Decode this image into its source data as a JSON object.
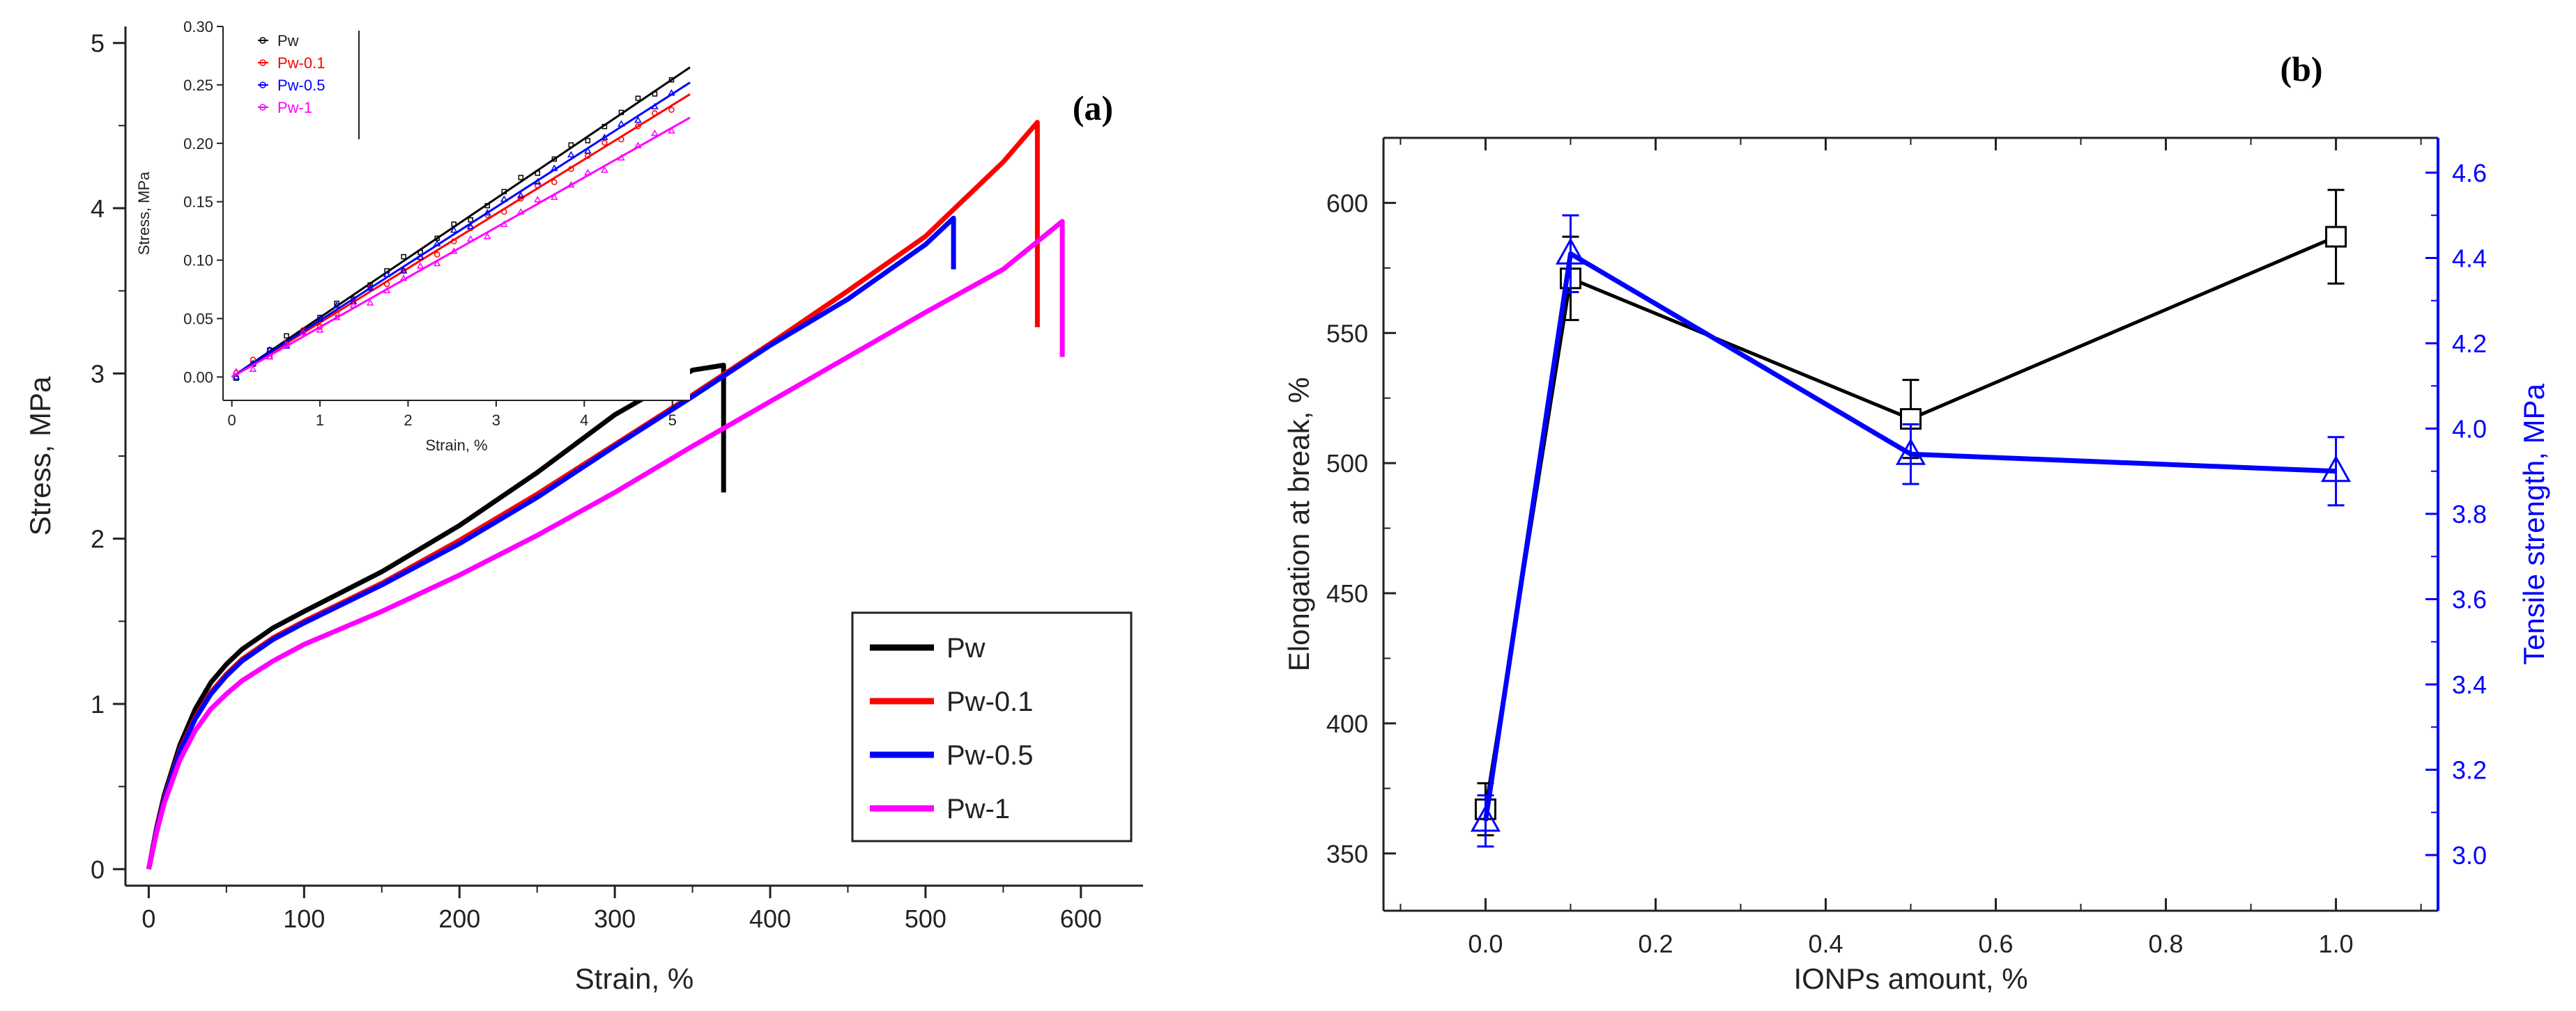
{
  "chart_data": [
    {
      "id": "a",
      "panel_label": "(a)",
      "type": "line",
      "title": "",
      "xlabel": "Strain, %",
      "ylabel": "Stress, MPa",
      "xlim": [
        -15,
        640
      ],
      "ylim": [
        -0.1,
        5.1
      ],
      "xticks": [
        0,
        100,
        200,
        300,
        400,
        500,
        600
      ],
      "yticks": [
        0,
        1,
        2,
        3,
        4,
        5
      ],
      "grid": false,
      "legend_position": "bottom-right",
      "series": [
        {
          "name": "Pw",
          "color": "#000000",
          "x": [
            0,
            5,
            10,
            20,
            30,
            40,
            50,
            60,
            80,
            100,
            150,
            200,
            250,
            300,
            350,
            370,
            370
          ],
          "y": [
            0,
            0.25,
            0.45,
            0.75,
            0.97,
            1.13,
            1.24,
            1.33,
            1.46,
            1.56,
            1.8,
            2.08,
            2.4,
            2.75,
            3.02,
            3.05,
            2.28
          ]
        },
        {
          "name": "Pw-0.1",
          "color": "#ff0000",
          "x": [
            0,
            5,
            10,
            20,
            30,
            40,
            50,
            60,
            80,
            100,
            150,
            200,
            250,
            300,
            350,
            400,
            450,
            500,
            550,
            572,
            572
          ],
          "y": [
            0,
            0.24,
            0.43,
            0.72,
            0.92,
            1.07,
            1.18,
            1.27,
            1.4,
            1.5,
            1.73,
            1.99,
            2.27,
            2.57,
            2.87,
            3.18,
            3.5,
            3.83,
            4.28,
            4.52,
            3.28
          ]
        },
        {
          "name": "Pw-0.5",
          "color": "#0000ff",
          "x": [
            0,
            5,
            10,
            20,
            30,
            40,
            50,
            60,
            80,
            100,
            150,
            200,
            250,
            300,
            350,
            400,
            450,
            500,
            518,
            518
          ],
          "y": [
            0,
            0.23,
            0.42,
            0.71,
            0.91,
            1.06,
            1.17,
            1.26,
            1.39,
            1.49,
            1.72,
            1.97,
            2.25,
            2.56,
            2.86,
            3.17,
            3.45,
            3.78,
            3.94,
            3.63
          ]
        },
        {
          "name": "Pw-1",
          "color": "#ff00ff",
          "x": [
            0,
            5,
            10,
            20,
            30,
            40,
            50,
            60,
            80,
            100,
            150,
            200,
            250,
            300,
            350,
            400,
            450,
            500,
            550,
            588,
            588
          ],
          "y": [
            0,
            0.22,
            0.4,
            0.66,
            0.84,
            0.97,
            1.06,
            1.14,
            1.26,
            1.36,
            1.56,
            1.78,
            2.02,
            2.28,
            2.56,
            2.83,
            3.1,
            3.37,
            3.63,
            3.92,
            3.1
          ]
        }
      ],
      "inset": {
        "type": "line",
        "xlabel": "Strain, %",
        "ylabel": "Stress, MPa",
        "xlim": [
          -0.1,
          5.2
        ],
        "ylim": [
          -0.02,
          0.3
        ],
        "xticks": [
          0,
          1,
          2,
          3,
          4,
          5
        ],
        "yticks": [
          0.0,
          0.05,
          0.1,
          0.15,
          0.2,
          0.25,
          0.3
        ],
        "ytick_labels": [
          "0.00",
          "0.05",
          "0.10",
          "0.15",
          "0.20",
          "0.25",
          "0.30"
        ],
        "legend_position": "top-left",
        "series": [
          {
            "name": "Pw",
            "color": "#000000",
            "x": [
              0,
              5.2
            ],
            "y": [
              0,
              0.265
            ]
          },
          {
            "name": "Pw-0.1",
            "color": "#ff0000",
            "x": [
              0,
              5.2
            ],
            "y": [
              0,
              0.242
            ]
          },
          {
            "name": "Pw-0.5",
            "color": "#0000ff",
            "x": [
              0,
              5.2
            ],
            "y": [
              0,
              0.252
            ]
          },
          {
            "name": "Pw-1",
            "color": "#ff00ff",
            "x": [
              0,
              5.2
            ],
            "y": [
              0,
              0.222
            ]
          }
        ]
      }
    },
    {
      "id": "b",
      "panel_label": "(b)",
      "type": "line",
      "title": "",
      "xlabel": "IONPs amount, %",
      "ylabel": "Elongation at break, %",
      "y2label": "Tensile strength, MPa",
      "xlim": [
        -0.12,
        1.12
      ],
      "ylim": [
        328,
        625
      ],
      "y2lim": [
        2.9,
        4.6
      ],
      "xticks": [
        0.0,
        0.2,
        0.4,
        0.6,
        0.8,
        1.0
      ],
      "xtick_labels": [
        "0.0",
        "0.2",
        "0.4",
        "0.6",
        "0.8",
        "1.0"
      ],
      "yticks": [
        350,
        400,
        450,
        500,
        550,
        600
      ],
      "y2ticks": [
        3.0,
        3.2,
        3.4,
        3.6,
        3.8,
        4.0,
        4.2,
        4.4,
        4.6
      ],
      "y2tick_labels": [
        "3.0",
        "3.2",
        "3.4",
        "3.6",
        "3.8",
        "4.0",
        "4.2",
        "4.4",
        "4.6"
      ],
      "grid": false,
      "series": [
        {
          "name": "Elongation at break",
          "axis": "left",
          "marker": "square",
          "color": "#000000",
          "x": [
            0.0,
            0.1,
            0.5,
            1.0
          ],
          "y": [
            367,
            571,
            517,
            587
          ],
          "err": [
            10,
            16,
            15,
            18
          ]
        },
        {
          "name": "Tensile strength",
          "axis": "right",
          "marker": "triangle",
          "color": "#0000ff",
          "x": [
            0.0,
            0.1,
            0.5,
            1.0
          ],
          "y": [
            3.08,
            4.41,
            3.94,
            3.9
          ],
          "err": [
            0.06,
            0.09,
            0.07,
            0.08
          ]
        }
      ]
    }
  ]
}
